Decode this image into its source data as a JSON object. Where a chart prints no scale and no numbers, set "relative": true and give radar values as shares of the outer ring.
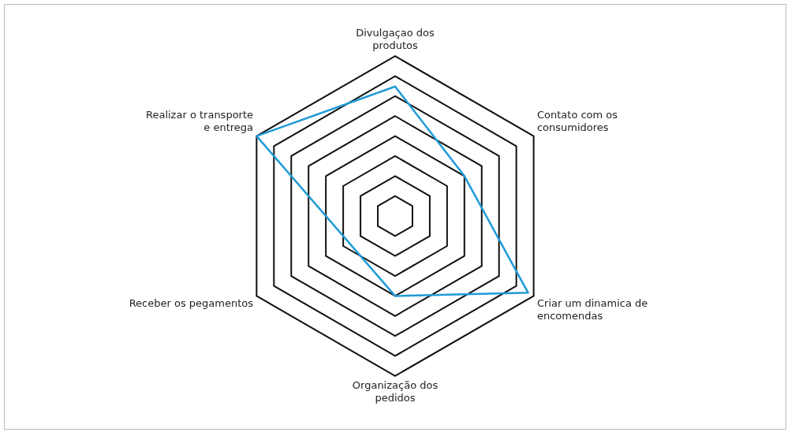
{
  "chart_data": {
    "type": "radar",
    "relative": true,
    "grid": true,
    "legend": false,
    "marker": "none",
    "categories": [
      "Divulgaçao dos produtos",
      "Contato com os consumidores",
      "Criar um dinamica de encomendas",
      "Organização dos pedidos",
      "Receber os pegamentos",
      "Realizar o transporte e entrega"
    ],
    "series": [
      {
        "color": "#1f9bd7",
        "values": [
          0.81,
          0.5,
          0.96,
          0.5,
          null,
          1
        ]
      }
    ]
  }
}
